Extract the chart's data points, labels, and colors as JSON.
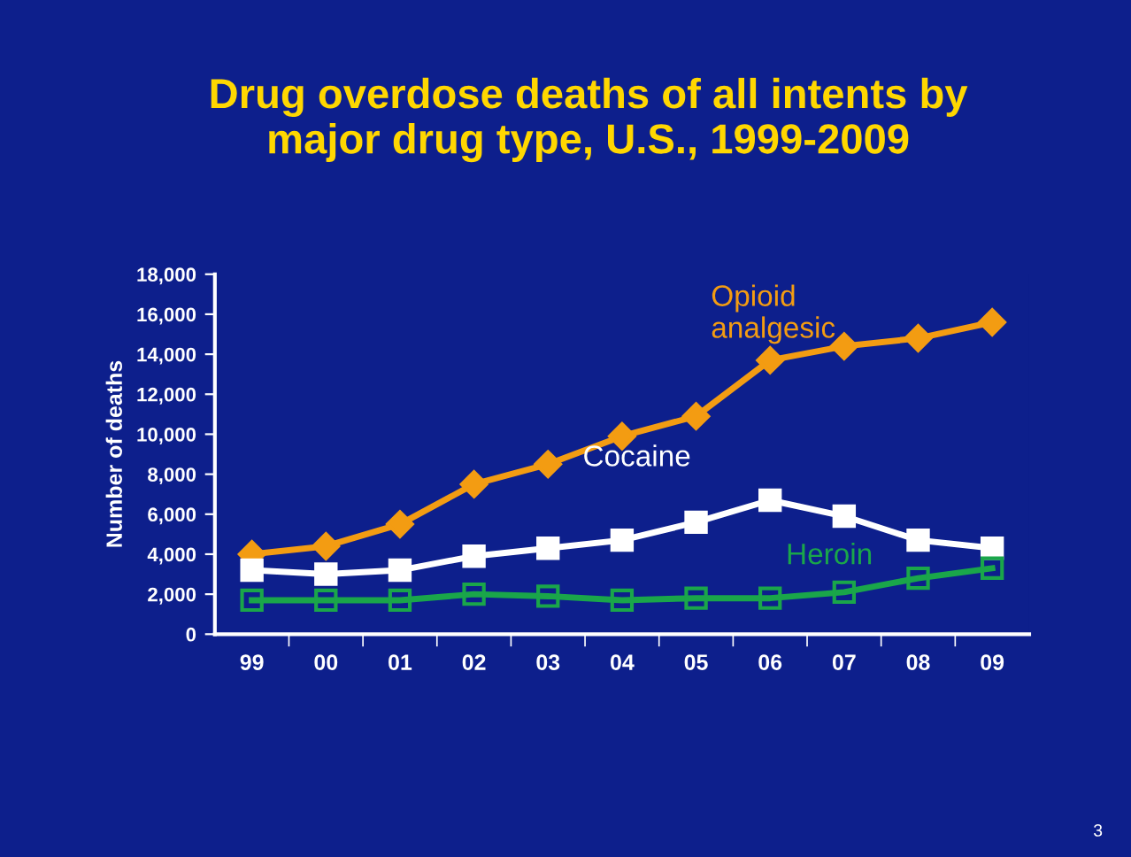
{
  "chart_data": {
    "type": "line",
    "title": "Drug overdose deaths of all intents by\nmajor drug type, U.S., 1999-2009",
    "ylabel": "Number of deaths",
    "categories": [
      "99",
      "00",
      "01",
      "02",
      "03",
      "04",
      "05",
      "06",
      "07",
      "08",
      "09"
    ],
    "series": [
      {
        "name": "Opioid\nanalgesic",
        "color": "#f39c12",
        "marker": "diamond",
        "values": [
          4000,
          4400,
          5500,
          7500,
          8500,
          9900,
          10900,
          13700,
          14400,
          14800,
          15600
        ]
      },
      {
        "name": "Cocaine",
        "color": "#ffffff",
        "marker": "square",
        "values": [
          3200,
          3000,
          3200,
          3900,
          4300,
          4700,
          5600,
          6700,
          5900,
          4700,
          4300
        ]
      },
      {
        "name": "Heroin",
        "color": "#1aa64a",
        "marker": "square",
        "values": [
          1700,
          1700,
          1700,
          2000,
          1900,
          1700,
          1800,
          1800,
          2100,
          2800,
          3300
        ]
      }
    ],
    "ylim": [
      0,
      18000
    ],
    "yticks": [
      {
        "value": 0,
        "label": "0"
      },
      {
        "value": 2000,
        "label": "2,000"
      },
      {
        "value": 4000,
        "label": "4,000"
      },
      {
        "value": 6000,
        "label": "6,000"
      },
      {
        "value": 8000,
        "label": "8,000"
      },
      {
        "value": 10000,
        "label": "10,000"
      },
      {
        "value": 12000,
        "label": "12,000"
      },
      {
        "value": 14000,
        "label": "14,000"
      },
      {
        "value": 16000,
        "label": "16,000"
      },
      {
        "value": 18000,
        "label": "18,000"
      }
    ],
    "grid": false,
    "legend": false,
    "annotations": [
      "3"
    ]
  }
}
